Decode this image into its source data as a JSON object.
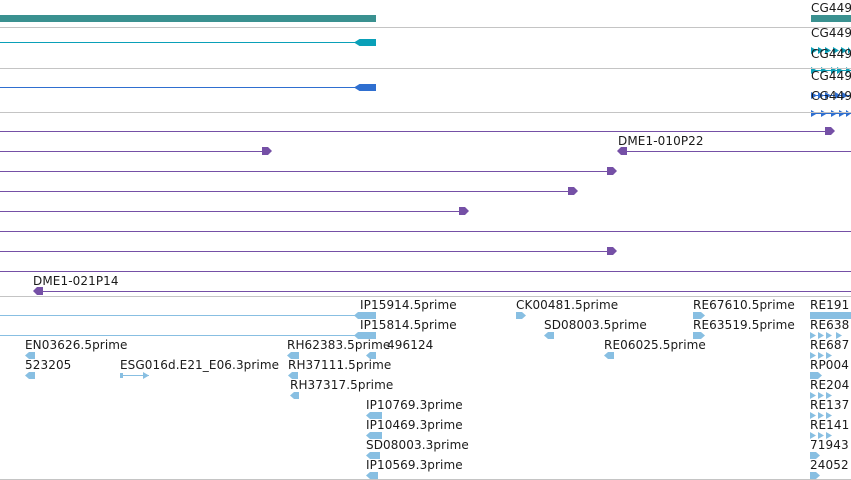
{
  "colors": {
    "gene_teal": "#3a9190",
    "transcript_cyan": "#0aa0b8",
    "transcript_blue": "#2f6fd0",
    "clone_purple": "#7550a6",
    "est_lightblue": "#88bfe2",
    "divider": "#c4c4c4",
    "text": "#1a1a1a"
  },
  "gene_track": {
    "label": "CG449"
  },
  "transcripts_a": {
    "labels": [
      "CG449",
      "CG449"
    ]
  },
  "transcripts_b": {
    "labels": [
      "CG449",
      "CG449"
    ]
  },
  "clones": {
    "labels": [
      "DME1-010P22",
      "DME1-021P14"
    ]
  },
  "ests": {
    "labels": [
      "IP15914.5prime",
      "CK00481.5prime",
      "RE67610.5prime",
      "RE191",
      "IP15814.5prime",
      "SD08003.5prime",
      "RE63519.5prime",
      "RE638",
      "EN03626.5prime",
      "RH62383.5prime",
      "496124",
      "RE06025.5prime",
      "RE687",
      "523205",
      "ESG016d.E21_E06.3prime",
      "RH37111.5prime",
      "RP004",
      "RH37317.5prime",
      "RE204",
      "IP10769.3prime",
      "RE137",
      "IP10469.3prime",
      "RE141",
      "SD08003.3prime",
      "71943",
      "IP10569.3prime",
      "24052"
    ]
  }
}
